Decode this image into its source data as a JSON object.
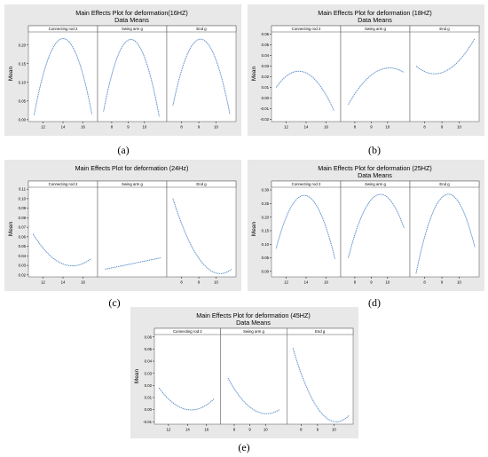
{
  "chart_data": [
    {
      "type": "line",
      "id": "a",
      "subfig_label": "(a)",
      "title": "Main Effects Plot for deformation(16HZ)",
      "subtitle": "Data Means",
      "ylabel": "Mean",
      "ylim": [
        -0.005,
        0.235
      ],
      "yticks": [
        0.0,
        0.05,
        0.1,
        0.15,
        0.2
      ],
      "ytick_labels": [
        "0.00",
        "0.05",
        "0.10",
        "0.15",
        "0.20"
      ],
      "panels": [
        {
          "label": "Connecting rod 2",
          "xlim": [
            10.8,
            17.2
          ],
          "xticks": [
            12,
            14,
            16
          ],
          "x": [
            11.1,
            13.7,
            16.9
          ],
          "y": [
            0.012,
            0.215,
            0.014
          ]
        },
        {
          "label": "Swing arm g",
          "xlim": [
            7.3,
            11.2
          ],
          "xticks": [
            8,
            9,
            10
          ],
          "x": [
            7.5,
            9.2,
            10.9
          ],
          "y": [
            0.022,
            0.215,
            0.008
          ]
        },
        {
          "label": "End g",
          "xlim": [
            7.3,
            11.0
          ],
          "xticks": [
            8,
            9,
            10
          ],
          "x": [
            7.5,
            9.0,
            10.8
          ],
          "y": [
            0.038,
            0.215,
            0.015
          ]
        }
      ]
    },
    {
      "type": "line",
      "id": "b",
      "subfig_label": "(b)",
      "title": "Main Effects Plot for deformation (18HZ)",
      "subtitle": "Data Means",
      "ylabel": "Mean",
      "ylim": [
        -0.022,
        0.062
      ],
      "yticks": [
        -0.02,
        -0.01,
        0.0,
        0.01,
        0.02,
        0.03,
        0.04,
        0.05,
        0.06
      ],
      "ytick_labels": [
        "-0.02",
        "-0.01",
        "0.00",
        "0.01",
        "0.02",
        "0.03",
        "0.04",
        "0.05",
        "0.06"
      ],
      "panels": [
        {
          "label": "Connecting rod 2",
          "xlim": [
            10.8,
            17.2
          ],
          "xticks": [
            12,
            14,
            16
          ],
          "x": [
            11.0,
            13.0,
            16.8
          ],
          "y": [
            0.01,
            0.025,
            -0.012
          ]
        },
        {
          "label": "Swing arm g",
          "xlim": [
            7.3,
            11.2
          ],
          "xticks": [
            8,
            9,
            10
          ],
          "x": [
            7.6,
            9.9,
            11.0
          ],
          "y": [
            -0.006,
            0.028,
            0.024
          ]
        },
        {
          "label": "End g",
          "xlim": [
            7.3,
            11.0
          ],
          "xticks": [
            8,
            9,
            10
          ],
          "x": [
            7.5,
            8.4,
            10.9
          ],
          "y": [
            0.03,
            0.023,
            0.056
          ]
        }
      ]
    },
    {
      "type": "line",
      "id": "c",
      "subfig_label": "(c)",
      "title": "Main Effects Plot for deformation (24Hz)",
      "subtitle": "",
      "ylabel": "Mean",
      "ylim": [
        0.018,
        0.112
      ],
      "yticks": [
        0.02,
        0.03,
        0.04,
        0.05,
        0.06,
        0.07,
        0.08,
        0.09,
        0.1,
        0.11
      ],
      "ytick_labels": [
        "0.02",
        "0.03",
        "0.04",
        "0.05",
        "0.06",
        "0.07",
        "0.08",
        "0.09",
        "0.10",
        "0.11"
      ],
      "panels": [
        {
          "label": "Connecting rod 2",
          "xlim": [
            10.8,
            17.2
          ],
          "xticks": [
            12,
            14,
            16
          ],
          "x": [
            11.0,
            14.5,
            16.8
          ],
          "y": [
            0.063,
            0.03,
            0.037
          ]
        },
        {
          "label": "Swing arm g",
          "xlim": [
            7.3,
            11.2
          ],
          "xticks": [],
          "x": [
            7.6,
            11.0
          ],
          "y": [
            0.026,
            0.038
          ]
        },
        {
          "label": "End g",
          "xlim": [
            7.3,
            11.0
          ],
          "xticks": [
            8,
            9,
            10
          ],
          "x": [
            7.5,
            10.0,
            10.9
          ],
          "y": [
            0.1,
            0.022,
            0.026
          ]
        }
      ]
    },
    {
      "type": "line",
      "id": "d",
      "subfig_label": "(d)",
      "title": "Main Effects Plot for deformation (25HZ)",
      "subtitle": "Data Means",
      "ylabel": "Mean",
      "ylim": [
        -0.02,
        0.31
      ],
      "yticks": [
        0.0,
        0.05,
        0.1,
        0.15,
        0.2,
        0.25,
        0.3
      ],
      "ytick_labels": [
        "0.00",
        "0.05",
        "0.10",
        "0.15",
        "0.20",
        "0.25",
        "0.30"
      ],
      "panels": [
        {
          "label": "Connecting rod 2",
          "xlim": [
            10.8,
            17.2
          ],
          "xticks": [
            12,
            14,
            16
          ],
          "x": [
            11.0,
            13.8,
            16.9
          ],
          "y": [
            0.085,
            0.28,
            0.045
          ]
        },
        {
          "label": "Swing arm g",
          "xlim": [
            7.3,
            11.2
          ],
          "xticks": [
            8,
            9,
            10
          ],
          "x": [
            7.6,
            9.4,
            11.0
          ],
          "y": [
            0.05,
            0.282,
            0.16
          ]
        },
        {
          "label": "End g",
          "xlim": [
            7.3,
            11.0
          ],
          "xticks": [
            8,
            9,
            10
          ],
          "x": [
            7.5,
            9.2,
            10.9
          ],
          "y": [
            -0.008,
            0.282,
            0.09
          ]
        }
      ]
    },
    {
      "type": "line",
      "id": "e",
      "subfig_label": "(e)",
      "title": "Main Effects Plot for deformation (45HZ)",
      "subtitle": "Data Means",
      "ylabel": "Mean",
      "ylim": [
        -0.012,
        0.062
      ],
      "yticks": [
        -0.01,
        0.0,
        0.01,
        0.02,
        0.03,
        0.04,
        0.05,
        0.06
      ],
      "ytick_labels": [
        "-0.01",
        "0.00",
        "0.01",
        "0.02",
        "0.03",
        "0.04",
        "0.05",
        "0.06"
      ],
      "panels": [
        {
          "label": "Connecting rod 2",
          "xlim": [
            10.8,
            17.2
          ],
          "xticks": [
            12,
            14,
            16
          ],
          "x": [
            11.0,
            14.0,
            16.8
          ],
          "y": [
            0.018,
            0.0,
            0.009
          ]
        },
        {
          "label": "Swing arm g",
          "xlim": [
            7.3,
            11.2
          ],
          "xticks": [
            8,
            9,
            10
          ],
          "x": [
            7.6,
            9.8,
            10.9
          ],
          "y": [
            0.026,
            -0.003,
            0.0
          ]
        },
        {
          "label": "End g",
          "xlim": [
            7.3,
            11.0
          ],
          "xticks": [
            8,
            9,
            10
          ],
          "x": [
            7.5,
            10.2,
            10.9
          ],
          "y": [
            0.051,
            -0.01,
            -0.005
          ]
        }
      ]
    }
  ],
  "colors": {
    "line": "#4f86c6",
    "plot_bg": "#e8e8e8",
    "panel_bg": "#ffffff",
    "strip_bg": "#ffffff"
  }
}
